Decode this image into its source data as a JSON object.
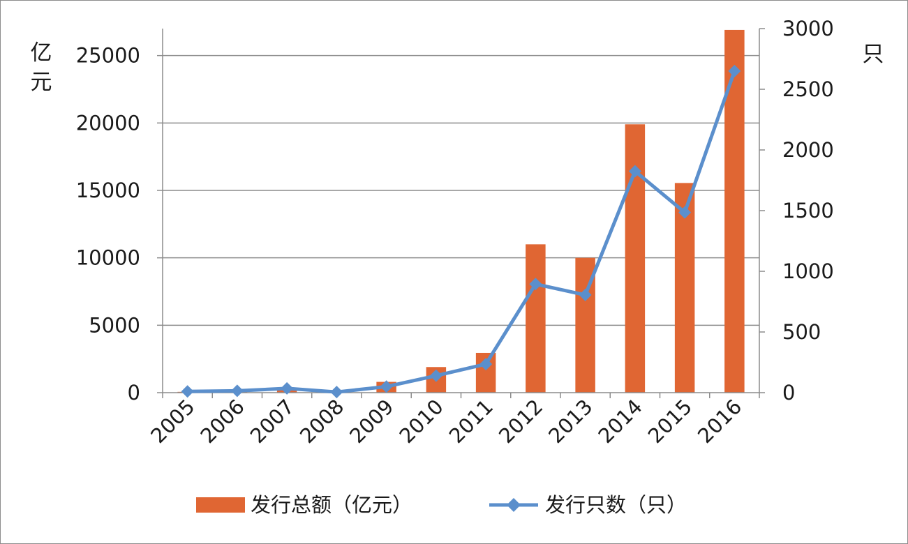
{
  "chart_data": {
    "type": "bar",
    "categories": [
      "2005",
      "2006",
      "2007",
      "2008",
      "2009",
      "2010",
      "2011",
      "2012",
      "2013",
      "2014",
      "2015",
      "2016"
    ],
    "series": [
      {
        "name": "发行总额（亿元）",
        "type": "bar",
        "axis": "left",
        "color": "#e06633",
        "values": [
          60,
          120,
          350,
          50,
          800,
          1900,
          2950,
          11000,
          10000,
          19900,
          15550,
          26900
        ]
      },
      {
        "name": "发行只数（只）",
        "type": "line",
        "axis": "right",
        "color": "#5b8fcc",
        "values": [
          10,
          15,
          35,
          5,
          50,
          140,
          235,
          895,
          805,
          1825,
          1485,
          2650
        ]
      }
    ],
    "y_left": {
      "label": "亿元",
      "ylim": [
        0,
        27000
      ],
      "ticks": [
        0,
        5000,
        10000,
        15000,
        20000,
        25000
      ]
    },
    "y_right": {
      "label": "只",
      "ylim": [
        0,
        3000
      ],
      "ticks": [
        0,
        500,
        1000,
        1500,
        2000,
        2500,
        3000
      ]
    },
    "grid": true,
    "legend": "bottom"
  }
}
